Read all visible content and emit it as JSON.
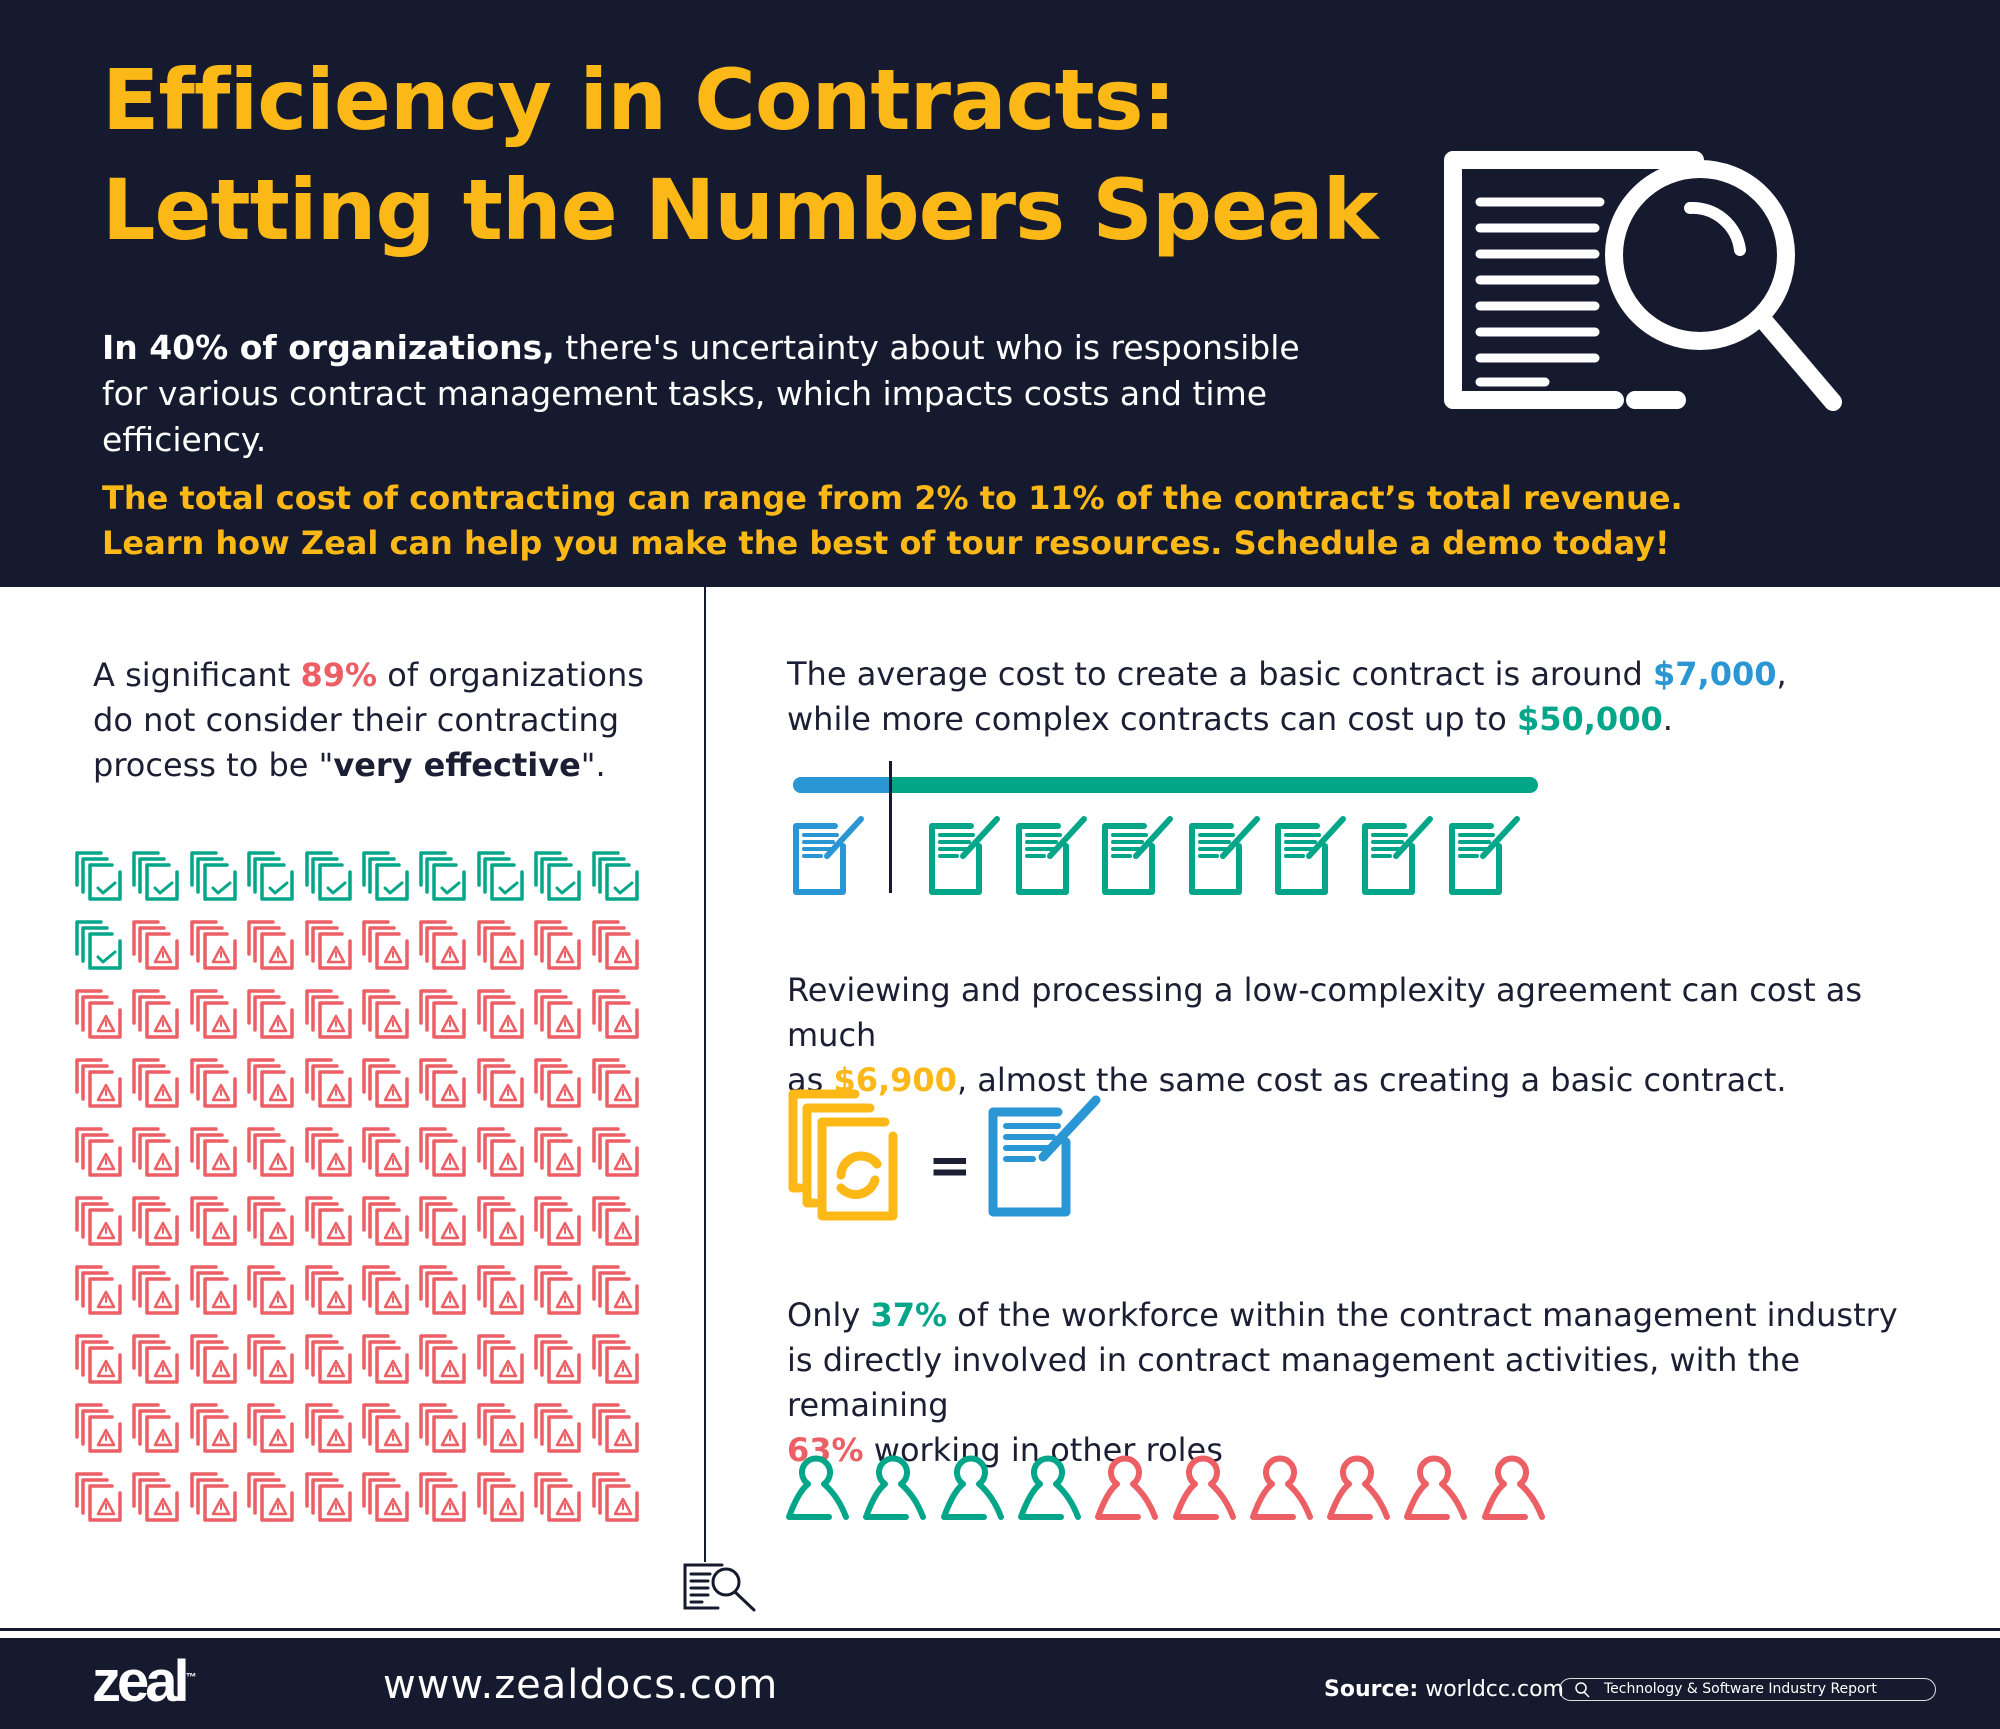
{
  "header": {
    "title_line1": "Efficiency in Contracts:",
    "title_line2": "Letting the Numbers Speak",
    "intro_bold": "In 40% of organizations,",
    "intro_rest1": " there's uncertainty about who is responsible",
    "intro_line2": "for various contract management tasks, which impacts costs and time efficiency.",
    "cta_line1": "The total cost of contracting can range from 2% to 11% of the contract’s total revenue.",
    "cta_line2": "Learn how Zeal can help you make the best of tour resources. Schedule a demo today!"
  },
  "left": {
    "t1": "A significant ",
    "pct": "89%",
    "t2": " of organizations",
    "t3": "do not consider their contracting",
    "t4": "process to be \"",
    "bold": "very effective",
    "t5": "\".",
    "effective_count": 11,
    "not_effective_count": 89
  },
  "cost": {
    "t1": "The average cost to create a basic contract is around ",
    "basic": "$7,000",
    "t2": ",",
    "t3": "while more complex contracts can cost up to ",
    "complex": "$50,000",
    "t4": ".",
    "basic_value": 7000,
    "complex_value": 50000,
    "complex_icons": 7
  },
  "review": {
    "t1": "Reviewing and processing a low-complexity agreement can cost as much",
    "t2": "as ",
    "amount": "$6,900",
    "t3": ", almost the same cost as creating a basic contract.",
    "equals": "="
  },
  "workforce": {
    "t1": "Only ",
    "pct_involved": "37%",
    "t2": " of the workforce within the contract management industry",
    "t3": "is directly involved in contract management activities, with the remaining",
    "pct_other": "63%",
    "t4": " working in other roles",
    "involved_people": 4,
    "other_people": 6
  },
  "footer": {
    "logo": "zeal",
    "tm": "™",
    "website": "www.zealdocs.com",
    "source_label": "Source:",
    "source": " worldcc.com",
    "report": "Technology & Software Industry Report"
  },
  "colors": {
    "dark": "#161a2e",
    "yellow": "#fbb817",
    "red": "#ec5f65",
    "teal": "#03a688",
    "blue": "#2b96d4"
  }
}
